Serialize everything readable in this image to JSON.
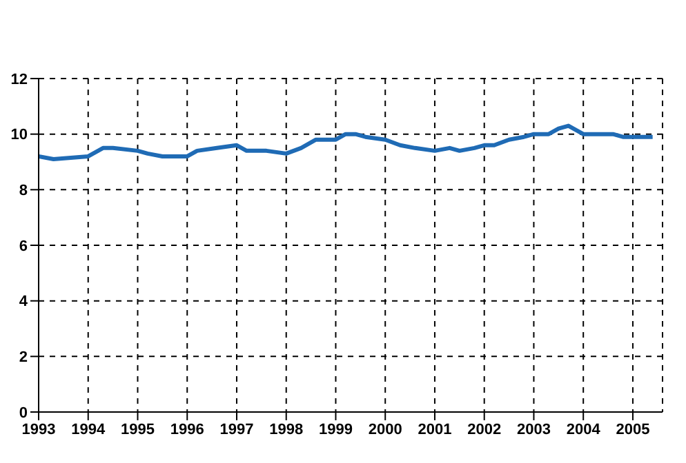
{
  "chart_data": {
    "type": "line",
    "x": [
      1993,
      1993.3,
      1994,
      1994.3,
      1994.5,
      1995,
      1995.2,
      1995.5,
      1996,
      1996.2,
      1996.6,
      1997,
      1997.2,
      1997.6,
      1998,
      1998.3,
      1998.6,
      1999,
      1999.2,
      1999.4,
      1999.6,
      2000,
      2000.3,
      2000.6,
      2001,
      2001.3,
      2001.5,
      2001.8,
      2002,
      2002.2,
      2002.5,
      2002.8,
      2003,
      2003.3,
      2003.5,
      2003.7,
      2004,
      2004.4,
      2004.6,
      2004.8,
      2005,
      2005.2,
      2005.4
    ],
    "series": [
      {
        "color": "#1f6bb5",
        "values": [
          9.2,
          9.1,
          9.2,
          9.5,
          9.5,
          9.4,
          9.3,
          9.2,
          9.2,
          9.4,
          9.5,
          9.6,
          9.4,
          9.4,
          9.3,
          9.5,
          9.8,
          9.8,
          10.0,
          10.0,
          9.9,
          9.8,
          9.6,
          9.5,
          9.4,
          9.5,
          9.4,
          9.5,
          9.6,
          9.6,
          9.8,
          9.9,
          10.0,
          10.0,
          10.2,
          10.3,
          10.0,
          10.0,
          10.0,
          9.9,
          9.9,
          9.9,
          9.9
        ]
      }
    ],
    "xlim": [
      1993,
      2005.6
    ],
    "xticks": [
      1993,
      1994,
      1995,
      1996,
      1997,
      1998,
      1999,
      2000,
      2001,
      2002,
      2003,
      2004,
      2005
    ],
    "ylim": [
      0,
      12
    ],
    "yticks": [
      0,
      2,
      4,
      6,
      8,
      10,
      12
    ],
    "grid": true,
    "marker": "none",
    "line_style": "solid"
  }
}
